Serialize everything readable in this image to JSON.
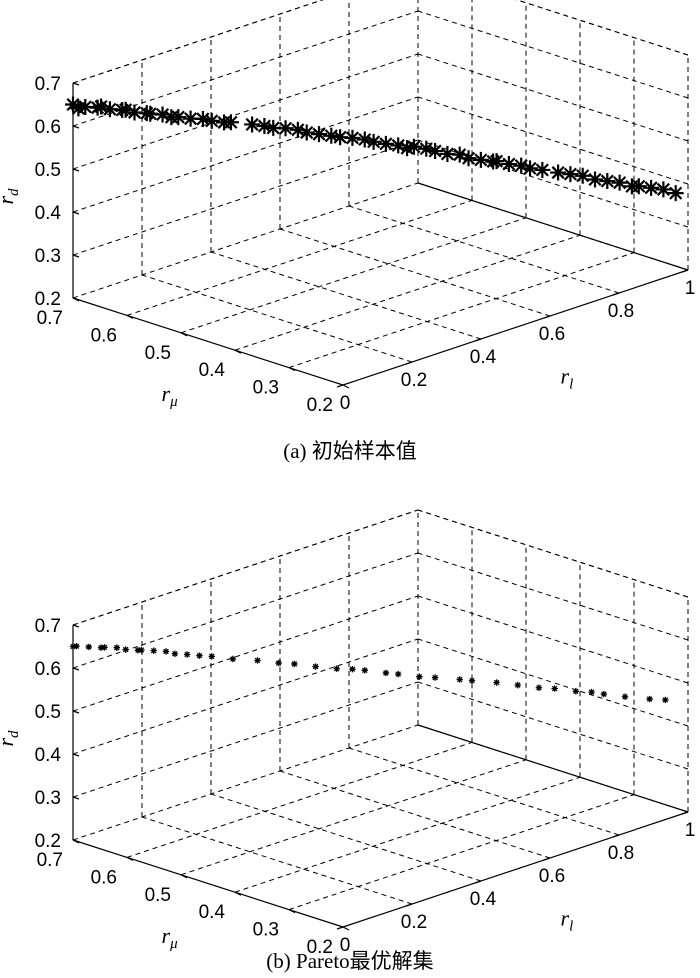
{
  "chart_data": [
    {
      "type": "scatter",
      "caption": "(a) 初始样本值",
      "x_name": "r",
      "x_sub": "l",
      "y_name": "r",
      "y_sub": "μ",
      "z_name": "r",
      "z_sub": "d",
      "xlim": [
        0,
        1
      ],
      "ylim": [
        0.2,
        0.7
      ],
      "zlim": [
        0.2,
        0.7
      ],
      "x_ticks": [
        "0",
        "0.2",
        "0.4",
        "0.6",
        "0.8",
        "1"
      ],
      "y_ticks": [
        "0.2",
        "0.3",
        "0.4",
        "0.5",
        "0.6",
        "0.7"
      ],
      "z_ticks": [
        "0.2",
        "0.3",
        "0.4",
        "0.5",
        "0.6",
        "0.7"
      ],
      "marker": "asterisk-large",
      "x": [
        0.0,
        0.0,
        0.02,
        0.04,
        0.05,
        0.06,
        0.08,
        0.09,
        0.1,
        0.12,
        0.13,
        0.15,
        0.16,
        0.18,
        0.2,
        0.22,
        0.23,
        0.25,
        0.27,
        0.3,
        0.32,
        0.33,
        0.35,
        0.37,
        0.38,
        0.4,
        0.42,
        0.43,
        0.45,
        0.47,
        0.48,
        0.5,
        0.52,
        0.53,
        0.55,
        0.57,
        0.58,
        0.6,
        0.62,
        0.63,
        0.65,
        0.67,
        0.68,
        0.7,
        0.72,
        0.73,
        0.75,
        0.78,
        0.8,
        0.82,
        0.84,
        0.86,
        0.88,
        0.9,
        0.92,
        0.94,
        0.96,
        0.98
      ],
      "y": [
        0.7,
        0.69,
        0.69,
        0.68,
        0.68,
        0.67,
        0.66,
        0.66,
        0.65,
        0.64,
        0.64,
        0.63,
        0.62,
        0.62,
        0.61,
        0.6,
        0.59,
        0.58,
        0.58,
        0.56,
        0.55,
        0.54,
        0.53,
        0.52,
        0.51,
        0.5,
        0.49,
        0.48,
        0.47,
        0.46,
        0.45,
        0.44,
        0.43,
        0.42,
        0.42,
        0.41,
        0.4,
        0.39,
        0.38,
        0.37,
        0.36,
        0.35,
        0.35,
        0.34,
        0.33,
        0.32,
        0.31,
        0.3,
        0.29,
        0.28,
        0.27,
        0.26,
        0.25,
        0.24,
        0.24,
        0.23,
        0.22,
        0.21
      ],
      "z": [
        0.65,
        0.645,
        0.643,
        0.64,
        0.64,
        0.635,
        0.632,
        0.63,
        0.625,
        0.622,
        0.618,
        0.615,
        0.61,
        0.605,
        0.6,
        0.598,
        0.595,
        0.59,
        0.585,
        0.58,
        0.575,
        0.572,
        0.57,
        0.565,
        0.56,
        0.555,
        0.55,
        0.548,
        0.545,
        0.54,
        0.536,
        0.53,
        0.525,
        0.52,
        0.518,
        0.512,
        0.508,
        0.5,
        0.497,
        0.49,
        0.485,
        0.48,
        0.478,
        0.47,
        0.465,
        0.46,
        0.455,
        0.445,
        0.44,
        0.435,
        0.425,
        0.42,
        0.415,
        0.405,
        0.4,
        0.395,
        0.39,
        0.38
      ]
    },
    {
      "type": "scatter",
      "caption": "(b) Pareto最优解集",
      "x_name": "r",
      "x_sub": "l",
      "y_name": "r",
      "y_sub": "μ",
      "z_name": "r",
      "z_sub": "d",
      "xlim": [
        0,
        1
      ],
      "ylim": [
        0.2,
        0.7
      ],
      "zlim": [
        0.2,
        0.7
      ],
      "x_ticks": [
        "0",
        "0.2",
        "0.4",
        "0.6",
        "0.8",
        "1"
      ],
      "y_ticks": [
        "0.2",
        "0.3",
        "0.4",
        "0.5",
        "0.6",
        "0.7"
      ],
      "z_ticks": [
        "0.2",
        "0.3",
        "0.4",
        "0.5",
        "0.6",
        "0.7"
      ],
      "marker": "asterisk-small",
      "x": [
        0.0,
        0.01,
        0.03,
        0.05,
        0.06,
        0.08,
        0.09,
        0.11,
        0.12,
        0.14,
        0.16,
        0.17,
        0.19,
        0.21,
        0.23,
        0.26,
        0.3,
        0.33,
        0.36,
        0.39,
        0.42,
        0.45,
        0.47,
        0.5,
        0.52,
        0.55,
        0.58,
        0.62,
        0.64,
        0.68,
        0.71,
        0.74,
        0.77,
        0.8,
        0.83,
        0.85,
        0.88,
        0.92,
        0.95
      ],
      "y": [
        0.7,
        0.7,
        0.69,
        0.68,
        0.68,
        0.67,
        0.66,
        0.65,
        0.65,
        0.64,
        0.63,
        0.62,
        0.61,
        0.6,
        0.59,
        0.57,
        0.55,
        0.53,
        0.52,
        0.5,
        0.48,
        0.47,
        0.46,
        0.44,
        0.43,
        0.41,
        0.4,
        0.38,
        0.37,
        0.35,
        0.33,
        0.31,
        0.3,
        0.28,
        0.27,
        0.26,
        0.24,
        0.22,
        0.21
      ],
      "z": [
        0.65,
        0.648,
        0.645,
        0.642,
        0.64,
        0.638,
        0.635,
        0.632,
        0.63,
        0.627,
        0.624,
        0.62,
        0.617,
        0.613,
        0.61,
        0.604,
        0.598,
        0.592,
        0.586,
        0.58,
        0.575,
        0.57,
        0.566,
        0.56,
        0.556,
        0.55,
        0.544,
        0.537,
        0.533,
        0.526,
        0.52,
        0.514,
        0.508,
        0.502,
        0.496,
        0.49,
        0.484,
        0.476,
        0.47
      ]
    }
  ]
}
